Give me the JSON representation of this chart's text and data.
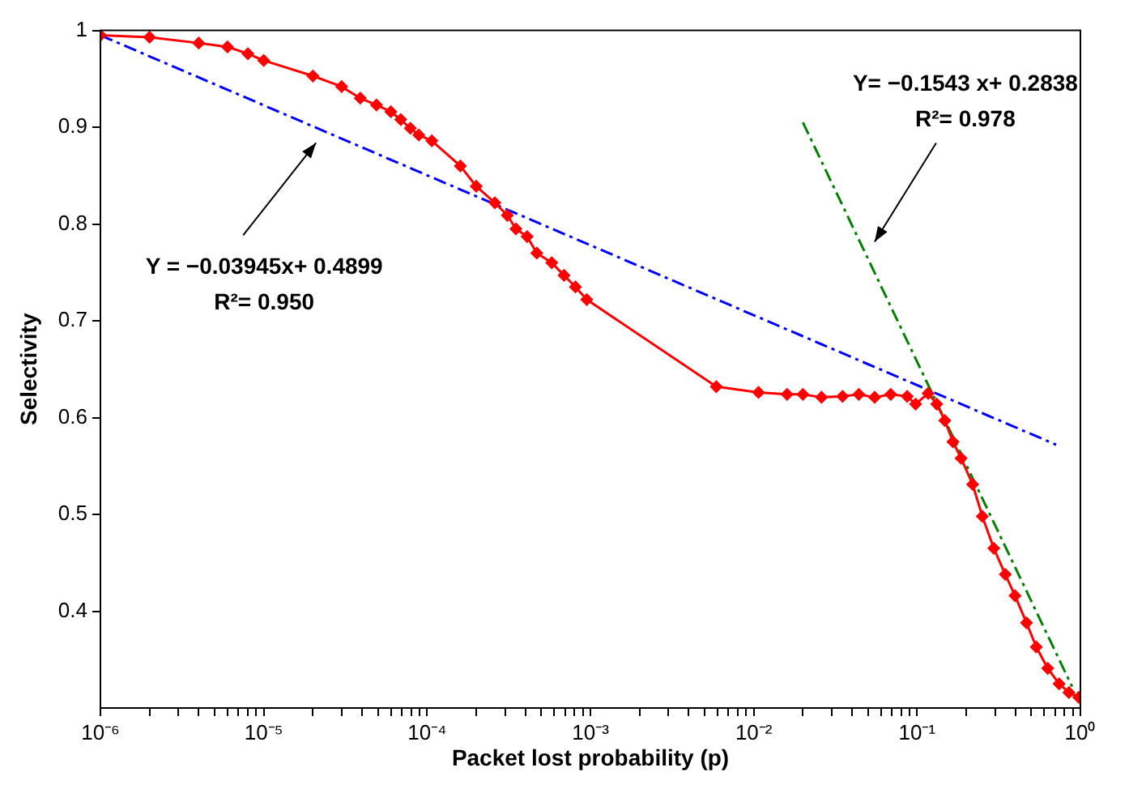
{
  "chart_data": {
    "type": "line",
    "xlabel": "Packet lost probability (p)",
    "ylabel": "Selectivity",
    "log": "x",
    "grid": false,
    "legend": false,
    "xlim": [
      1e-06,
      1
    ],
    "xticks": [
      {
        "value": 1e-06,
        "label": "10⁻⁶"
      },
      {
        "value": 2e-06,
        "label": null
      },
      {
        "value": 3e-06,
        "label": null
      },
      {
        "value": 4e-06,
        "label": null
      },
      {
        "value": 5e-06,
        "label": null
      },
      {
        "value": 6e-06,
        "label": null
      },
      {
        "value": 7e-06,
        "label": null
      },
      {
        "value": 8e-06,
        "label": null
      },
      {
        "value": 9e-06,
        "label": null
      },
      {
        "value": 1e-05,
        "label": "10⁻⁵"
      },
      {
        "value": 2e-05,
        "label": null
      },
      {
        "value": 3e-05,
        "label": null
      },
      {
        "value": 4e-05,
        "label": null
      },
      {
        "value": 5e-05,
        "label": null
      },
      {
        "value": 6e-05,
        "label": null
      },
      {
        "value": 7e-05,
        "label": null
      },
      {
        "value": 8e-05,
        "label": null
      },
      {
        "value": 9e-05,
        "label": null
      },
      {
        "value": 0.0001,
        "label": "10⁻⁴"
      },
      {
        "value": 0.0002,
        "label": null
      },
      {
        "value": 0.0003,
        "label": null
      },
      {
        "value": 0.0004,
        "label": null
      },
      {
        "value": 0.0005,
        "label": null
      },
      {
        "value": 0.0006,
        "label": null
      },
      {
        "value": 0.0007,
        "label": null
      },
      {
        "value": 0.0008,
        "label": null
      },
      {
        "value": 0.0009,
        "label": null
      },
      {
        "value": 0.001,
        "label": "10⁻³"
      },
      {
        "value": 0.002,
        "label": null
      },
      {
        "value": 0.003,
        "label": null
      },
      {
        "value": 0.004,
        "label": null
      },
      {
        "value": 0.005,
        "label": null
      },
      {
        "value": 0.006,
        "label": null
      },
      {
        "value": 0.007,
        "label": null
      },
      {
        "value": 0.008,
        "label": null
      },
      {
        "value": 0.009,
        "label": null
      },
      {
        "value": 0.01,
        "label": "10⁻²"
      },
      {
        "value": 0.02,
        "label": null
      },
      {
        "value": 0.03,
        "label": null
      },
      {
        "value": 0.04,
        "label": null
      },
      {
        "value": 0.05,
        "label": null
      },
      {
        "value": 0.06,
        "label": null
      },
      {
        "value": 0.07,
        "label": null
      },
      {
        "value": 0.08,
        "label": null
      },
      {
        "value": 0.09,
        "label": null
      },
      {
        "value": 0.1,
        "label": "10⁻¹"
      },
      {
        "value": 0.2,
        "label": null
      },
      {
        "value": 0.3,
        "label": null
      },
      {
        "value": 0.4,
        "label": null
      },
      {
        "value": 0.5,
        "label": null
      },
      {
        "value": 0.6,
        "label": null
      },
      {
        "value": 0.7,
        "label": null
      },
      {
        "value": 0.8,
        "label": null
      },
      {
        "value": 0.9,
        "label": null
      },
      {
        "value": 1,
        "label": "10⁰"
      }
    ],
    "ylim": [
      0.3,
      1
    ],
    "yticks": [
      0.4,
      0.5,
      0.6,
      0.7,
      0.8,
      0.9,
      1
    ],
    "series": [
      {
        "color": "#ff0000",
        "marker": "diamond",
        "line_style": "solid",
        "x": [
          1e-06,
          2e-06,
          4e-06,
          6e-06,
          8e-06,
          1e-05,
          2e-05,
          3e-05,
          3.9e-05,
          4.9e-05,
          6e-05,
          6.9e-05,
          7.9e-05,
          8.9e-05,
          0.000107,
          0.00016,
          0.0002,
          0.00026,
          0.00031,
          0.00035,
          0.00041,
          0.00047,
          0.00058,
          0.00069,
          0.00081,
          0.00095,
          0.0059,
          0.0107,
          0.016,
          0.02,
          0.026,
          0.035,
          0.044,
          0.055,
          0.069,
          0.087,
          0.098,
          0.117,
          0.132,
          0.148,
          0.166,
          0.186,
          0.219,
          0.251,
          0.295,
          0.347,
          0.398,
          0.468,
          0.537,
          0.631,
          0.741,
          0.851,
          0.977
        ],
        "values": [
          0.995,
          0.993,
          0.987,
          0.983,
          0.976,
          0.969,
          0.953,
          0.942,
          0.93,
          0.923,
          0.916,
          0.908,
          0.899,
          0.892,
          0.886,
          0.86,
          0.839,
          0.822,
          0.809,
          0.795,
          0.787,
          0.77,
          0.76,
          0.747,
          0.735,
          0.722,
          0.632,
          0.626,
          0.624,
          0.624,
          0.621,
          0.622,
          0.624,
          0.621,
          0.624,
          0.622,
          0.614,
          0.625,
          0.614,
          0.597,
          0.575,
          0.558,
          0.531,
          0.498,
          0.465,
          0.438,
          0.416,
          0.388,
          0.363,
          0.341,
          0.325,
          0.316,
          0.311
        ]
      },
      {
        "color": "#0000ff",
        "marker": "none",
        "line_style": "dashed",
        "x": [
          1e-06,
          0.71
        ],
        "values": [
          0.995,
          0.572
        ]
      },
      {
        "color": "#008000",
        "marker": "none",
        "line_style": "dashed",
        "x": [
          0.02,
          0.89
        ],
        "values": [
          0.905,
          0.322
        ]
      }
    ],
    "annotations": [
      "Y = −0.03945x+ 0.4899\nR²= 0.950",
      "Y= −0.1543 x+ 0.2838\nR²= 0.978"
    ]
  }
}
